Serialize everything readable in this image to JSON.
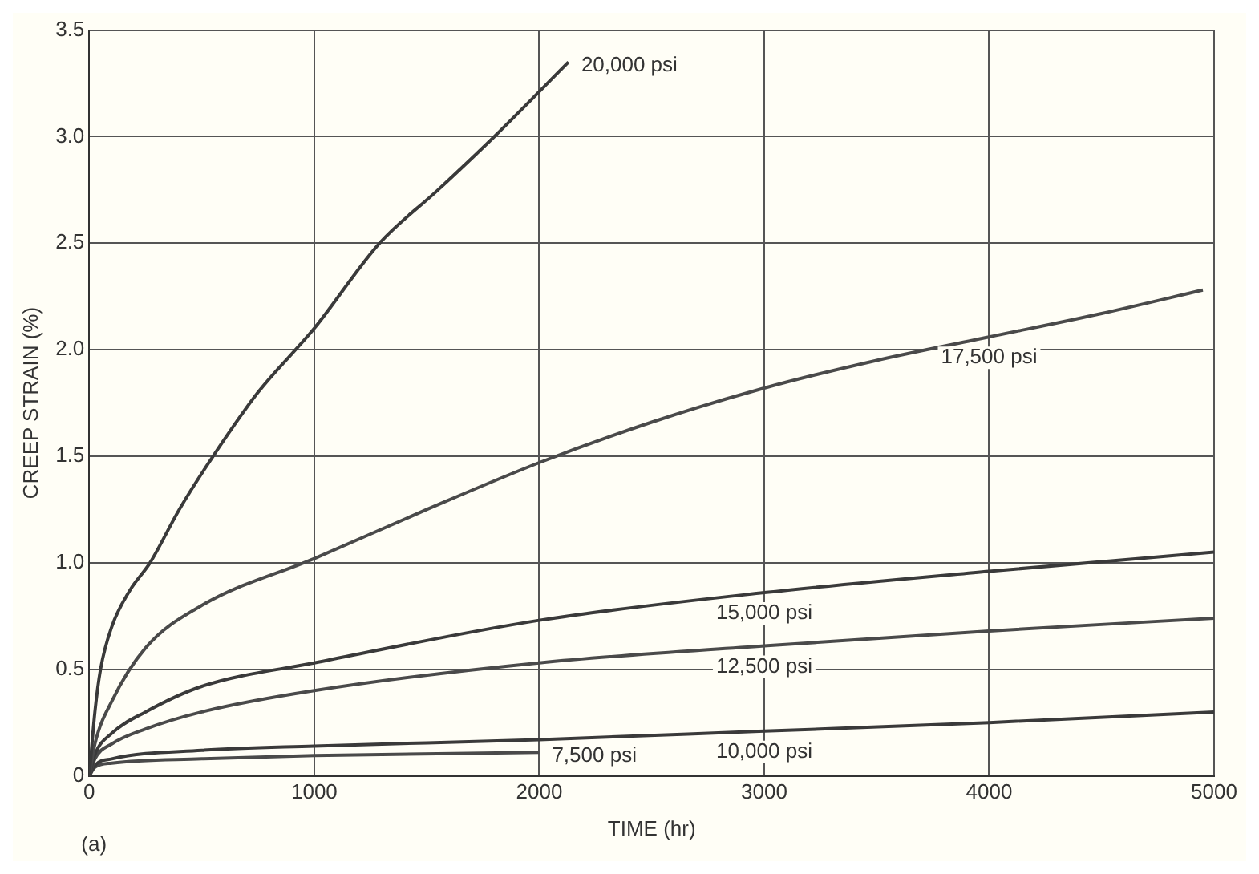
{
  "chart_data": {
    "type": "line",
    "xlabel": "TIME (hr)",
    "ylabel": "CREEP STRAIN (%)",
    "xlim": [
      0,
      5000
    ],
    "ylim": [
      0,
      3.5
    ],
    "xticks": [
      0,
      1000,
      2000,
      3000,
      4000,
      5000
    ],
    "yticks": [
      0,
      {
        "value": 0.5,
        "label": "0.5"
      },
      {
        "value": 1,
        "label": "1.0"
      },
      {
        "value": 1.5,
        "label": "1.5"
      },
      {
        "value": 2,
        "label": "2.0"
      },
      {
        "value": 2.5,
        "label": "2.5"
      },
      {
        "value": 3,
        "label": "3.0"
      },
      {
        "value": 3.5,
        "label": "3.5"
      }
    ],
    "grid": true,
    "legend": false,
    "marker": "none",
    "line_style": "solid",
    "series": [
      {
        "name": "20,000 psi",
        "color": "#3a3a3a",
        "x": [
          0,
          25,
          50,
          100,
          180,
          270,
          400,
          550,
          750,
          1000,
          1290,
          1550,
          1800,
          2130
        ],
        "values": [
          0,
          0.3,
          0.5,
          0.7,
          0.87,
          1.0,
          1.25,
          1.5,
          1.8,
          2.1,
          2.5,
          2.75,
          3.0,
          3.35
        ]
      },
      {
        "name": "17,500 psi",
        "color": "#4a4a4a",
        "x": [
          0,
          25,
          100,
          250,
          500,
          1000,
          1500,
          2000,
          2500,
          3000,
          3500,
          4000,
          4500,
          4950
        ],
        "values": [
          0,
          0.15,
          0.35,
          0.6,
          0.8,
          1.02,
          1.25,
          1.47,
          1.66,
          1.82,
          1.95,
          2.06,
          2.17,
          2.28
        ]
      },
      {
        "name": "15,000 psi",
        "color": "#3a3a3a",
        "x": [
          0,
          25,
          100,
          250,
          500,
          1000,
          2000,
          3000,
          4000,
          5000
        ],
        "values": [
          0,
          0.1,
          0.2,
          0.3,
          0.42,
          0.53,
          0.73,
          0.86,
          0.96,
          1.05
        ]
      },
      {
        "name": "12,500 psi",
        "color": "#4a4a4a",
        "x": [
          0,
          25,
          100,
          250,
          500,
          1000,
          2000,
          3000,
          4000,
          5000
        ],
        "values": [
          0,
          0.08,
          0.15,
          0.22,
          0.3,
          0.4,
          0.53,
          0.61,
          0.68,
          0.74
        ]
      },
      {
        "name": "10,000 psi",
        "color": "#3a3a3a",
        "x": [
          0,
          25,
          100,
          500,
          1000,
          2000,
          3000,
          4000,
          5000
        ],
        "values": [
          0,
          0.05,
          0.08,
          0.12,
          0.14,
          0.17,
          0.21,
          0.25,
          0.3
        ]
      },
      {
        "name": "7,500 psi",
        "color": "#4a4a4a",
        "x": [
          0,
          25,
          100,
          500,
          1000,
          2000
        ],
        "values": [
          0,
          0.04,
          0.06,
          0.08,
          0.095,
          0.11
        ]
      }
    ],
    "annotations": [
      "(a)"
    ]
  }
}
